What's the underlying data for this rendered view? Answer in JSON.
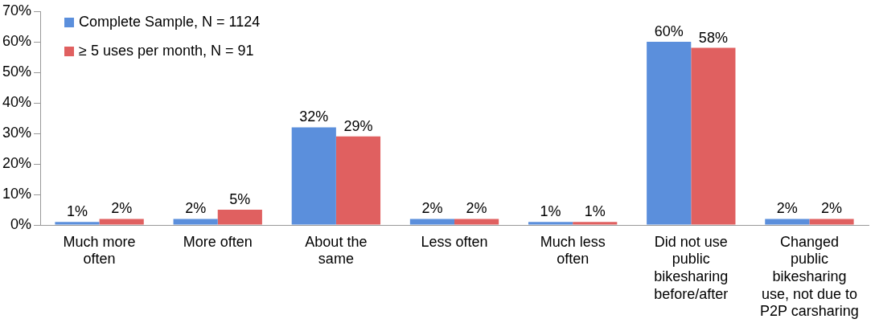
{
  "chart_data": {
    "type": "bar",
    "categories": [
      "Much more often",
      "More often",
      "About the same",
      "Less often",
      "Much less often",
      "Did not use public bikesharing before/after",
      "Changed public bikesharing use, not due to P2P carsharing"
    ],
    "series": [
      {
        "name": "Complete Sample, N = 1124",
        "color": "#5b8fdc",
        "values": [
          1,
          2,
          32,
          2,
          1,
          60,
          2
        ],
        "value_labels": [
          "1%",
          "2%",
          "32%",
          "2%",
          "1%",
          "60%",
          "2%"
        ]
      },
      {
        "name": "≥ 5 uses per month, N = 91",
        "color": "#e06060",
        "values": [
          2,
          5,
          29,
          2,
          1,
          58,
          2
        ],
        "value_labels": [
          "2%",
          "5%",
          "29%",
          "2%",
          "1%",
          "58%",
          "2%"
        ]
      }
    ],
    "ylim": [
      0,
      70
    ],
    "yticks": [
      {
        "value": 0,
        "label": "0%"
      },
      {
        "value": 10,
        "label": "10%"
      },
      {
        "value": 20,
        "label": "20%"
      },
      {
        "value": 30,
        "label": "30%"
      },
      {
        "value": 40,
        "label": "40%"
      },
      {
        "value": 50,
        "label": "50%"
      },
      {
        "value": 60,
        "label": "60%"
      },
      {
        "value": 70,
        "label": "70%"
      }
    ],
    "grid": false,
    "legend": "top left"
  }
}
